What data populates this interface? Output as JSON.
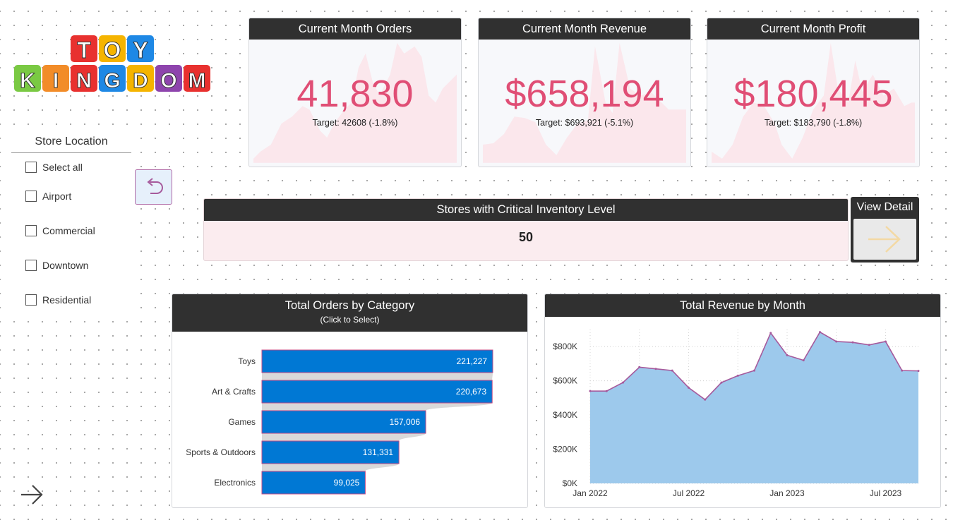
{
  "logo": {
    "line1": "TOY",
    "line2": "KINGDOM"
  },
  "slicer": {
    "title": "Store Location",
    "items": [
      {
        "label": "Select all"
      },
      {
        "label": "Airport"
      },
      {
        "label": "Commercial"
      },
      {
        "label": "Downtown"
      },
      {
        "label": "Residential"
      }
    ]
  },
  "kpis": [
    {
      "title": "Current Month Orders",
      "value": "41,830",
      "target": "Target: 42608 (-1.8%)"
    },
    {
      "title": "Current Month Revenue",
      "value": "$658,194",
      "target": "Target: $693,921 (-5.1%)"
    },
    {
      "title": "Current Month Profit",
      "value": "$180,445",
      "target": "Target: $183,790 (-1.8%)"
    }
  ],
  "critical": {
    "title": "Stores with Critical Inventory Level",
    "value": "50"
  },
  "view_detail": {
    "label": "View Detail"
  },
  "colors": {
    "header": "#303030",
    "kpi_value": "#e04e75",
    "bar": "#0078d4",
    "area_fill": "#9dc9ec",
    "area_line": "#a65a9c"
  },
  "chart_data": [
    {
      "type": "bar",
      "title": "Total Orders by Category",
      "subtitle": "(Click to Select)",
      "categories": [
        "Toys",
        "Art & Crafts",
        "Games",
        "Sports & Outdoors",
        "Electronics"
      ],
      "values": [
        221227,
        220673,
        157006,
        131331,
        99025
      ],
      "value_labels": [
        "221,227",
        "220,673",
        "157,006",
        "131,331",
        "99,025"
      ],
      "xlim": [
        0,
        221227
      ]
    },
    {
      "type": "area",
      "title": "Total Revenue by Month",
      "x": [
        "2022-01",
        "2022-02",
        "2022-03",
        "2022-04",
        "2022-05",
        "2022-06",
        "2022-07",
        "2022-08",
        "2022-09",
        "2022-10",
        "2022-11",
        "2022-12",
        "2023-01",
        "2023-02",
        "2023-03",
        "2023-04",
        "2023-05",
        "2023-06",
        "2023-07",
        "2023-08",
        "2023-09"
      ],
      "y": [
        540000,
        540000,
        590000,
        680000,
        670000,
        660000,
        560000,
        490000,
        590000,
        630000,
        660000,
        880000,
        750000,
        720000,
        885000,
        830000,
        825000,
        810000,
        830000,
        660000,
        658000
      ],
      "x_ticks": [
        "Jan 2022",
        "Jul 2022",
        "Jan 2023",
        "Jul 2023"
      ],
      "y_ticks": [
        "$0K",
        "$200K",
        "$400K",
        "$600K",
        "$800K"
      ],
      "ylim": [
        0,
        900000
      ],
      "grid": true
    }
  ]
}
